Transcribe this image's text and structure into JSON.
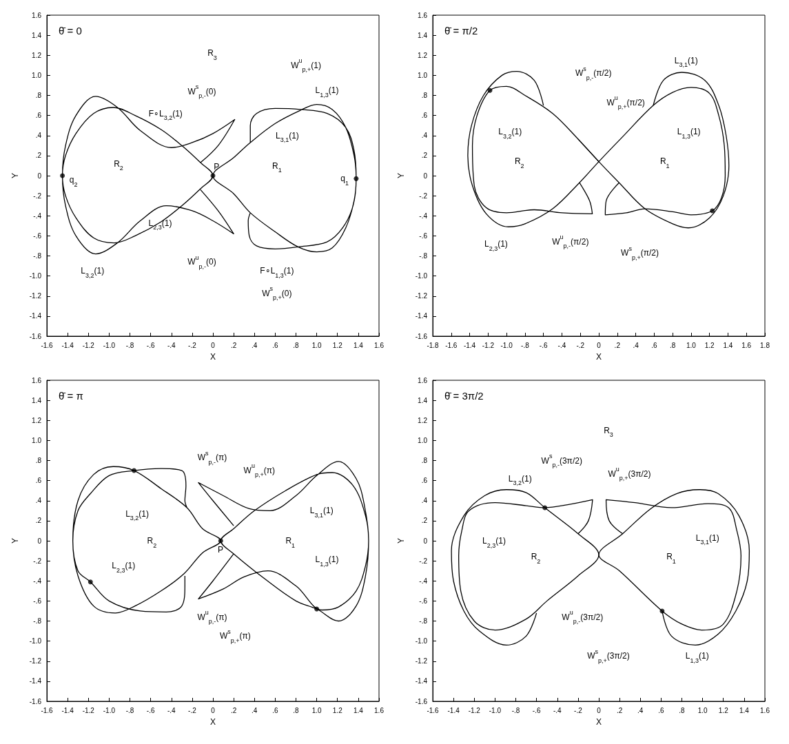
{
  "chart_data": [
    {
      "type": "line",
      "title": "θ̄ = 0",
      "xlabel": "X",
      "ylabel": "Y",
      "xlim": [
        -1.6,
        1.6
      ],
      "ylim": [
        -1.6,
        1.6
      ],
      "xticks": [
        -1.6,
        -1.4,
        -1.2,
        {
          "value": -1.0,
          "label": "-1.0"
        },
        {
          "value": -0.8,
          "label": "-.8"
        },
        {
          "value": -0.6,
          "label": "-.6"
        },
        {
          "value": -0.4,
          "label": "-.4"
        },
        {
          "value": -0.2,
          "label": "-.2"
        },
        0,
        {
          "value": 0.2,
          "label": ".2"
        },
        {
          "value": 0.4,
          "label": ".4"
        },
        {
          "value": 0.6,
          "label": ".6"
        },
        {
          "value": 0.8,
          "label": ".8"
        },
        {
          "value": 1.0,
          "label": "1.0"
        },
        1.2,
        1.4,
        1.6
      ],
      "yticks": [
        -1.6,
        -1.4,
        -1.2,
        {
          "value": -1.0,
          "label": "-1.0"
        },
        {
          "value": -0.8,
          "label": "-.8"
        },
        {
          "value": -0.6,
          "label": "-.6"
        },
        {
          "value": -0.4,
          "label": "-.4"
        },
        {
          "value": -0.2,
          "label": "-.2"
        },
        0,
        {
          "value": 0.2,
          "label": ".2"
        },
        {
          "value": 0.4,
          "label": ".4"
        },
        {
          "value": 0.6,
          "label": ".6"
        },
        {
          "value": 0.8,
          "label": ".8"
        },
        {
          "value": 1.0,
          "label": "1.0"
        },
        1.2,
        1.4,
        1.6
      ],
      "series": [
        {
          "color": "#000000",
          "x": [
            0.36,
            0.34,
            0.35,
            0.42,
            0.6,
            0.82,
            1.1,
            1.25,
            1.35,
            1.38,
            1.36,
            1.28,
            1.15,
            1.0,
            0.84,
            0.6,
            0.36,
            0.2,
            0,
            0.2,
            0.36,
            0.6,
            0.82,
            1.0,
            1.15,
            1.28,
            1.36,
            1.38,
            1.36,
            1.28,
            1.1,
            0.84,
            0.6,
            0.42,
            0.36,
            0.36
          ],
          "values": [
            -0.37,
            -0.45,
            -0.6,
            -0.7,
            -0.73,
            -0.71,
            -0.66,
            -0.52,
            -0.3,
            -0.03,
            0.2,
            0.48,
            0.66,
            0.71,
            0.65,
            0.52,
            0.33,
            0.18,
            0,
            -0.18,
            -0.37,
            -0.56,
            -0.71,
            -0.76,
            -0.72,
            -0.52,
            -0.25,
            -0.03,
            0.25,
            0.48,
            0.62,
            0.66,
            0.67,
            0.62,
            0.5,
            0.33
          ]
        },
        {
          "color": "#000000",
          "x": [
            -0.12,
            0.05,
            0.2,
            0,
            -0.2,
            -0.45,
            -0.7,
            -0.92,
            -1.13,
            -1.32,
            -1.42,
            -1.45,
            -1.42,
            -1.32,
            -1.15,
            -0.96,
            -0.75,
            -0.5,
            -0.3,
            -0.12,
            0,
            -0.12,
            -0.3,
            -0.5,
            -0.75,
            -0.95,
            -1.15,
            -1.32,
            -1.42,
            -1.45,
            -1.42,
            -1.32,
            -1.13,
            -0.92,
            -0.7,
            -0.4,
            -0.2,
            0,
            0.21,
            0.05,
            -0.12
          ],
          "values": [
            -0.14,
            -0.35,
            -0.58,
            -0.45,
            -0.35,
            -0.3,
            -0.45,
            -0.67,
            -0.78,
            -0.6,
            -0.3,
            0,
            0.2,
            0.42,
            0.62,
            0.68,
            0.6,
            0.46,
            0.3,
            0.13,
            0,
            -0.13,
            -0.3,
            -0.46,
            -0.6,
            -0.67,
            -0.62,
            -0.42,
            -0.2,
            0,
            0.3,
            0.6,
            0.79,
            0.68,
            0.45,
            0.28,
            0.33,
            0.42,
            0.56,
            0.3,
            0.13
          ]
        },
        {
          "type": "scatter",
          "marker": "circle",
          "color": "#000000",
          "x": [
            0,
            1.38,
            -1.45
          ],
          "values": [
            0,
            -0.03,
            0
          ]
        }
      ],
      "annotations": [
        "R$_{3}$",
        "R$_{2}$",
        "R$_{1}$",
        "P",
        "q$_{2}$",
        "q$_{1}$",
        "W$^{s}$$_{p,-}$(0)",
        "W$^{u}$$_{p,+}$(1)",
        "W$^{u}$$_{p,-}$(0)",
        "W$^{s}$$_{p,+}$(0)",
        "F∘L$_{3,2}$(1)",
        "L$_{3,1}$(1)",
        "L$_{1,3}$(1)",
        "L$_{2,3}$(1)",
        "L$_{3,2}$(1)",
        "F∘L$_{1,3}$(1)"
      ]
    },
    {
      "type": "line",
      "title": "θ̄ = π/2",
      "xlabel": "X",
      "ylabel": "Y",
      "xlim": [
        -1.8,
        1.8
      ],
      "ylim": [
        -1.6,
        1.6
      ],
      "xticks": [
        -1.8,
        -1.6,
        -1.4,
        -1.2,
        {
          "value": -1.0,
          "label": "-1.0"
        },
        {
          "value": -0.8,
          "label": "-.8"
        },
        {
          "value": -0.6,
          "label": "-.6"
        },
        {
          "value": -0.4,
          "label": "-.4"
        },
        {
          "value": -0.2,
          "label": "-.2"
        },
        0,
        {
          "value": 0.2,
          "label": ".2"
        },
        {
          "value": 0.4,
          "label": ".4"
        },
        {
          "value": 0.6,
          "label": ".6"
        },
        {
          "value": 0.8,
          "label": ".8"
        },
        {
          "value": 1.0,
          "label": "1.0"
        },
        1.2,
        1.4,
        1.6,
        1.8
      ],
      "yticks": [
        -1.6,
        -1.4,
        -1.2,
        {
          "value": -1.0,
          "label": "-1.0"
        },
        {
          "value": -0.8,
          "label": "-.8"
        },
        {
          "value": -0.6,
          "label": "-.6"
        },
        {
          "value": -0.4,
          "label": "-.4"
        },
        {
          "value": -0.2,
          "label": "-.2"
        },
        0,
        {
          "value": 0.2,
          "label": ".2"
        },
        {
          "value": 0.4,
          "label": ".4"
        },
        {
          "value": 0.6,
          "label": ".6"
        },
        {
          "value": 0.8,
          "label": ".8"
        },
        {
          "value": 1.0,
          "label": "1.0"
        },
        1.2,
        1.4,
        1.6
      ],
      "series": [
        {
          "color": "#000000",
          "x": [
            0.22,
            0.08,
            0.07,
            0.3,
            0.5,
            0.8,
            1.0,
            1.23,
            1.33,
            1.37,
            1.36,
            1.3,
            1.2,
            1.0,
            0.8,
            0.59,
            0.25,
            0,
            -0.21,
            -0.5,
            -0.8,
            -0.98,
            -1.22,
            -1.37,
            -1.42,
            -1.38,
            -1.25,
            -1.05,
            -0.89,
            -0.7,
            -0.6
          ],
          "values": [
            -0.07,
            -0.25,
            -0.39,
            -0.37,
            -0.33,
            -0.36,
            -0.39,
            -0.35,
            -0.22,
            0,
            0.3,
            0.6,
            0.82,
            0.88,
            0.83,
            0.7,
            0.38,
            0.14,
            -0.07,
            -0.33,
            -0.48,
            -0.51,
            -0.38,
            -0.1,
            0.2,
            0.5,
            0.8,
            1.0,
            1.04,
            0.95,
            0.7
          ]
        },
        {
          "color": "#000000",
          "x": [
            -0.23,
            0,
            0.22,
            0.5,
            0.8,
            0.97,
            1.2,
            1.35,
            1.41,
            1.38,
            1.3,
            1.15,
            0.9,
            0.7,
            0.59
          ],
          "values": [
            0.37,
            0.14,
            -0.07,
            -0.33,
            -0.48,
            -0.52,
            -0.42,
            -0.2,
            0.1,
            0.4,
            0.7,
            0.95,
            1.03,
            0.95,
            0.7
          ]
        },
        {
          "color": "#000000",
          "x": [
            0,
            -0.23,
            -0.5,
            -0.8,
            -1.0,
            -1.18,
            -1.32,
            -1.37,
            -1.35,
            -1.22,
            -1.0,
            -0.7,
            -0.4,
            -0.07,
            -0.1,
            -0.21
          ],
          "values": [
            0.14,
            0.37,
            0.62,
            0.8,
            0.89,
            0.85,
            0.6,
            0.3,
            -0.1,
            -0.32,
            -0.37,
            -0.34,
            -0.37,
            -0.38,
            -0.25,
            -0.07
          ]
        },
        {
          "type": "scatter",
          "marker": "circle",
          "color": "#000000",
          "x": [
            -1.18,
            1.23
          ],
          "values": [
            0.85,
            -0.35
          ]
        }
      ],
      "annotations": [
        "W$^{s}$$_{p,-}$(π/2)",
        "L$_{3,1}$(1)",
        "W$^{u}$$_{p,+}$(π/2)",
        "L$_{3,2}$(1)",
        "L$_{1,3}$(1)",
        "R$_{2}$",
        "R$_{1}$",
        "L$_{2,3}$(1)",
        "W$^{u}$$_{p,-}$(π/2)",
        "W$^{s}$$_{p,+}$(π/2)"
      ]
    },
    {
      "type": "line",
      "title": "θ̄ = π",
      "xlabel": "X",
      "ylabel": "Y",
      "xlim": [
        -1.6,
        1.6
      ],
      "ylim": [
        -1.6,
        1.6
      ],
      "xticks": [
        -1.6,
        -1.4,
        -1.2,
        {
          "value": -1.0,
          "label": "-1.0"
        },
        {
          "value": -0.8,
          "label": "-.8"
        },
        {
          "value": -0.6,
          "label": "-.6"
        },
        {
          "value": -0.4,
          "label": "-.4"
        },
        {
          "value": -0.2,
          "label": "-.2"
        },
        0,
        {
          "value": 0.2,
          "label": ".2"
        },
        {
          "value": 0.4,
          "label": ".4"
        },
        {
          "value": 0.6,
          "label": ".6"
        },
        {
          "value": 0.8,
          "label": ".8"
        },
        {
          "value": 1.0,
          "label": "1.0"
        },
        1.2,
        1.4,
        1.6
      ],
      "yticks": [
        -1.6,
        -1.4,
        -1.2,
        {
          "value": -1.0,
          "label": "-1.0"
        },
        {
          "value": -0.8,
          "label": "-.8"
        },
        {
          "value": -0.6,
          "label": "-.6"
        },
        {
          "value": -0.4,
          "label": "-.4"
        },
        {
          "value": -0.2,
          "label": "-.2"
        },
        0,
        {
          "value": 0.2,
          "label": ".2"
        },
        {
          "value": 0.4,
          "label": ".4"
        },
        {
          "value": 0.6,
          "label": ".6"
        },
        {
          "value": 0.8,
          "label": ".8"
        },
        {
          "value": 1.0,
          "label": "1.0"
        },
        1.2,
        1.4,
        1.6
      ],
      "series": [
        {
          "color": "#000000",
          "x": [
            0.2,
            0.0,
            -0.14,
            0.1,
            0.3,
            0.53,
            0.8,
            1.05,
            1.21,
            1.38,
            1.47,
            1.5,
            1.47,
            1.35,
            1.15,
            1.0,
            0.7,
            0.4,
            0.2,
            0.075,
            0.2,
            0.5,
            0.8,
            1.0,
            1.21,
            1.38,
            1.47,
            1.5,
            1.46,
            1.38,
            1.21,
            1.0,
            0.8,
            0.55,
            0.35,
            0.1,
            -0.14,
            0.0,
            0.2
          ],
          "values": [
            -0.13,
            -0.4,
            -0.58,
            -0.48,
            -0.36,
            -0.3,
            -0.45,
            -0.69,
            -0.66,
            -0.5,
            -0.25,
            0,
            0.25,
            0.55,
            0.68,
            0.66,
            0.5,
            0.3,
            0.12,
            0,
            -0.13,
            -0.38,
            -0.6,
            -0.68,
            -0.8,
            -0.65,
            -0.35,
            0,
            0.35,
            0.62,
            0.79,
            0.65,
            0.45,
            0.3,
            0.32,
            0.45,
            0.58,
            0.4,
            0.15
          ]
        },
        {
          "color": "#000000",
          "x": [
            -0.27,
            -0.27,
            -0.3,
            -0.45,
            -0.7,
            -1.0,
            -1.18,
            -1.3,
            -1.35,
            -1.3,
            -1.15,
            -0.96,
            -0.76,
            -0.5,
            -0.25,
            -0.1,
            0.075,
            -0.1,
            -0.28,
            -0.5,
            -0.75,
            -0.94,
            -1.15,
            -1.3,
            -1.35,
            -1.3,
            -1.18,
            -1.0,
            -0.76,
            -0.5,
            -0.3,
            -0.26,
            -0.27,
            -0.25
          ],
          "values": [
            -0.35,
            -0.45,
            -0.65,
            -0.71,
            -0.7,
            -0.6,
            -0.41,
            -0.3,
            0,
            0.4,
            0.66,
            0.74,
            0.7,
            0.52,
            0.33,
            0.12,
            0,
            -0.12,
            -0.33,
            -0.5,
            -0.65,
            -0.72,
            -0.65,
            -0.35,
            0,
            0.3,
            0.47,
            0.65,
            0.7,
            0.72,
            0.7,
            0.55,
            0.4,
            0.33
          ]
        },
        {
          "type": "scatter",
          "marker": "circle",
          "color": "#000000",
          "x": [
            0.075,
            -0.76,
            1.0,
            -1.18
          ],
          "values": [
            0,
            0.7,
            -0.68,
            -0.41
          ]
        }
      ],
      "annotations": [
        "W$^{s}$$_{p,-}$(π)",
        "W$^{u}$$_{p,+}$(π)",
        "L$_{3,1}$(1)",
        "L$_{3,2}$(1)",
        "R$_{2}$",
        "R$_{1}$",
        "P",
        "L$_{1,3}$(1)",
        "L$_{2,3}$(1)",
        "W$^{u}$$_{p,-}$(π)",
        "W$^{s}$$_{p,+}$(π)"
      ]
    },
    {
      "type": "line",
      "title": "θ̄ = 3π/2",
      "xlabel": "X",
      "ylabel": "Y",
      "xlim": [
        -1.6,
        1.6
      ],
      "ylim": [
        -1.6,
        1.6
      ],
      "xticks": [
        -1.6,
        -1.4,
        -1.2,
        {
          "value": -1.0,
          "label": "-1.0"
        },
        {
          "value": -0.8,
          "label": "-.8"
        },
        {
          "value": -0.6,
          "label": "-.6"
        },
        {
          "value": -0.4,
          "label": "-.4"
        },
        {
          "value": -0.2,
          "label": "-.2"
        },
        0,
        {
          "value": 0.2,
          "label": ".2"
        },
        {
          "value": 0.4,
          "label": ".4"
        },
        {
          "value": 0.6,
          "label": ".6"
        },
        {
          "value": 0.8,
          "label": ".8"
        },
        {
          "value": 1.0,
          "label": "1.0"
        },
        1.2,
        1.4,
        1.6
      ],
      "yticks": [
        -1.6,
        -1.4,
        -1.2,
        {
          "value": -1.0,
          "label": "-1.0"
        },
        {
          "value": -0.8,
          "label": "-.8"
        },
        {
          "value": -0.6,
          "label": "-.6"
        },
        {
          "value": -0.4,
          "label": "-.4"
        },
        {
          "value": -0.2,
          "label": "-.2"
        },
        0,
        {
          "value": 0.2,
          "label": ".2"
        },
        {
          "value": 0.4,
          "label": ".4"
        },
        {
          "value": 0.6,
          "label": ".6"
        },
        {
          "value": 0.8,
          "label": ".8"
        },
        {
          "value": 1.0,
          "label": "1.0"
        },
        1.2,
        1.4,
        1.6
      ],
      "series": [
        {
          "color": "#000000",
          "x": [
            -0.6,
            -0.7,
            -0.89,
            -1.15,
            -1.3,
            -1.4,
            -1.42,
            -1.3,
            -1.1,
            -0.89,
            -0.7,
            -0.52,
            -0.2,
            0,
            -0.2,
            -0.5,
            -0.7,
            -1.0,
            -1.2,
            -1.33,
            -1.35,
            -1.32,
            -1.25,
            -1.0,
            -0.7,
            -0.52,
            -0.3,
            -0.06,
            -0.1,
            -0.2
          ],
          "values": [
            -0.72,
            -0.95,
            -1.04,
            -0.9,
            -0.7,
            -0.4,
            -0.1,
            0.25,
            0.45,
            0.51,
            0.48,
            0.33,
            0.07,
            -0.14,
            -0.35,
            -0.6,
            -0.78,
            -0.89,
            -0.8,
            -0.5,
            -0.15,
            0.1,
            0.3,
            0.38,
            0.35,
            0.33,
            0.36,
            0.41,
            0.2,
            0.07
          ]
        },
        {
          "color": "#000000",
          "x": [
            0.61,
            0.7,
            0.93,
            1.15,
            1.32,
            1.43,
            1.45,
            1.35,
            1.15,
            0.97,
            0.75,
            0.5,
            0.23,
            0,
            0.2,
            0.61,
            0.8,
            1.0,
            1.2,
            1.33,
            1.37,
            1.33,
            1.25,
            1.05,
            0.7,
            0.35,
            0.07,
            0.1,
            0.23
          ],
          "values": [
            -0.7,
            -0.95,
            -1.04,
            -0.93,
            -0.7,
            -0.4,
            -0.1,
            0.25,
            0.47,
            0.51,
            0.47,
            0.32,
            0.07,
            -0.14,
            -0.3,
            -0.7,
            -0.83,
            -0.89,
            -0.83,
            -0.5,
            -0.15,
            0.1,
            0.33,
            0.37,
            0.33,
            0.38,
            0.41,
            0.2,
            0.07
          ]
        },
        {
          "type": "scatter",
          "marker": "circle",
          "color": "#000000",
          "x": [
            -0.52,
            0.61
          ],
          "values": [
            0.33,
            -0.7
          ]
        }
      ],
      "annotations": [
        "R$_{3}$",
        "W$^{s}$$_{p,-}$(3π/2)",
        "W$^{u}$$_{p,+}$(3π/2)",
        "L$_{3,2}$(1)",
        "L$_{2,3}$(1)",
        "R$_{2}$",
        "R$_{1}$",
        "L$_{3,1}$(1)",
        "W$^{u}$$_{p,-}$(3π/2)",
        "W$^{s}$$_{p,+}$(3π/2)",
        "L$_{1,3}$(1)"
      ]
    }
  ]
}
